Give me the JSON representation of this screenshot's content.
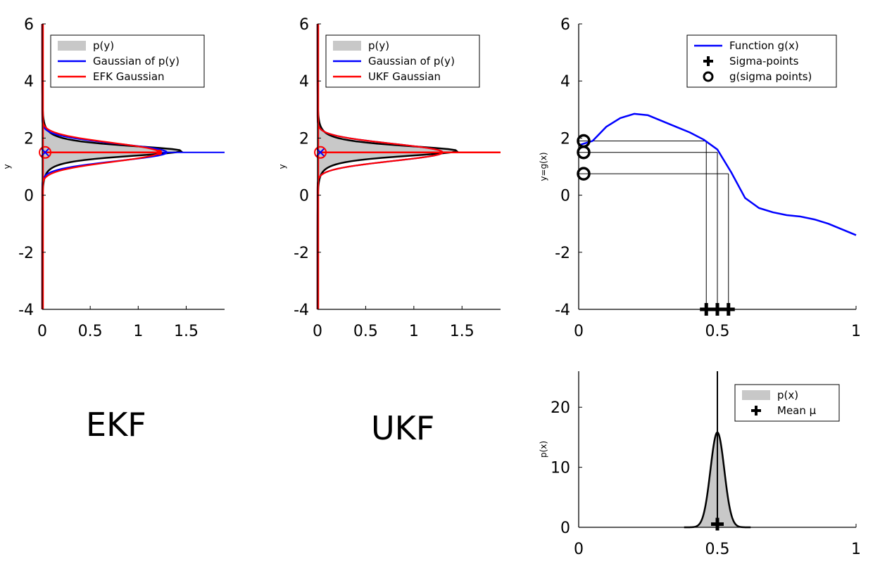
{
  "captions": {
    "left": "EKF",
    "middle": "UKF"
  },
  "colors": {
    "gray_fill": "#c8c8c8",
    "blue": "#0000ff",
    "red": "#ff0000",
    "black": "#000000"
  },
  "chart_data": [
    {
      "id": "ekf",
      "type": "area",
      "orientation": "horizontal-density",
      "xlim": [
        0,
        1.9
      ],
      "ylim": [
        -4,
        6
      ],
      "xticks": [
        "0",
        "0.5",
        "1",
        "1.5"
      ],
      "xtick_values": [
        0,
        0.5,
        1,
        1.5
      ],
      "yticks": [
        "-4",
        "-2",
        "0",
        "2",
        "4",
        "6"
      ],
      "ytick_values": [
        -4,
        -2,
        0,
        2,
        4,
        6
      ],
      "ylabel": "y",
      "legend_position": "top-right",
      "legend": [
        "p(y)",
        "Gaussian of p(y)",
        "EFK Gaussian"
      ],
      "series": [
        {
          "name": "p(y)",
          "kind": "density",
          "mean": 1.55,
          "sd": 0.27,
          "peak": 1.45
        },
        {
          "name": "Gaussian of p(y)",
          "kind": "gaussian",
          "mean": 1.5,
          "sd": 0.3,
          "peak": 1.3
        },
        {
          "name": "EFK Gaussian",
          "kind": "gaussian",
          "mean": 1.5,
          "sd": 0.33,
          "peak": 1.22
        }
      ],
      "markers": [
        {
          "shape": "x",
          "x": 0.03,
          "y": 1.5,
          "color": "blue"
        },
        {
          "shape": "circle",
          "x": 0.03,
          "y": 1.5,
          "color": "red"
        }
      ]
    },
    {
      "id": "ukf",
      "type": "area",
      "orientation": "horizontal-density",
      "xlim": [
        0,
        1.9
      ],
      "ylim": [
        -4,
        6
      ],
      "xticks": [
        "0",
        "0.5",
        "1",
        "1.5"
      ],
      "xtick_values": [
        0,
        0.5,
        1,
        1.5
      ],
      "yticks": [
        "-4",
        "-2",
        "0",
        "2",
        "4",
        "6"
      ],
      "ytick_values": [
        -4,
        -2,
        0,
        2,
        4,
        6
      ],
      "ylabel": "y",
      "legend_position": "top-right",
      "legend": [
        "p(y)",
        "Gaussian of p(y)",
        "UKF Gaussian"
      ],
      "series": [
        {
          "name": "p(y)",
          "kind": "density",
          "mean": 1.55,
          "sd": 0.27,
          "peak": 1.45
        },
        {
          "name": "Gaussian of p(y)",
          "kind": "gaussian",
          "mean": 1.5,
          "sd": 0.3,
          "peak": 1.3
        },
        {
          "name": "UKF Gaussian",
          "kind": "gaussian",
          "mean": 1.5,
          "sd": 0.3,
          "peak": 1.3
        }
      ],
      "markers": [
        {
          "shape": "x",
          "x": 0.03,
          "y": 1.5,
          "color": "blue"
        },
        {
          "shape": "circle",
          "x": 0.03,
          "y": 1.5,
          "color": "red"
        }
      ]
    },
    {
      "id": "transform",
      "type": "line",
      "xlim": [
        0,
        1
      ],
      "ylim": [
        -4,
        6
      ],
      "xticks": [
        "0",
        "0.5",
        "1"
      ],
      "xtick_values": [
        0,
        0.5,
        1
      ],
      "yticks": [
        "-4",
        "-2",
        "0",
        "2",
        "4",
        "6"
      ],
      "ytick_values": [
        -4,
        -2,
        0,
        2,
        4,
        6
      ],
      "ylabel": "y=g(x)",
      "legend_position": "top-right",
      "legend": [
        "Function g(x)",
        "Sigma-points",
        "g(sigma points)"
      ],
      "x": [
        0,
        0.05,
        0.1,
        0.15,
        0.2,
        0.25,
        0.3,
        0.35,
        0.4,
        0.45,
        0.5,
        0.55,
        0.6,
        0.65,
        0.7,
        0.75,
        0.8,
        0.85,
        0.9,
        0.95,
        1.0
      ],
      "y": [
        1.75,
        1.9,
        2.4,
        2.7,
        2.85,
        2.8,
        2.6,
        2.4,
        2.2,
        1.95,
        1.6,
        0.8,
        -0.1,
        -0.45,
        -0.6,
        -0.7,
        -0.75,
        -0.85,
        -1.0,
        -1.2,
        -1.4
      ],
      "sigma_points_x": [
        0.46,
        0.5,
        0.54
      ],
      "g_sigma_points_y": [
        1.9,
        1.5,
        0.75
      ]
    },
    {
      "id": "prior",
      "type": "area",
      "xlim": [
        0,
        1
      ],
      "ylim": [
        0,
        26
      ],
      "xticks": [
        "0",
        "0.5",
        "1"
      ],
      "xtick_values": [
        0,
        0.5,
        1
      ],
      "yticks": [
        "0",
        "10",
        "20"
      ],
      "ytick_values": [
        0,
        10,
        20
      ],
      "ylabel": "p(x)",
      "legend_position": "top-right",
      "legend": [
        "p(x)",
        "Mean μ"
      ],
      "mean": 0.5,
      "sd": 0.025,
      "peak": 15.8,
      "mean_marker": {
        "x": 0.5,
        "y": 0.3
      }
    }
  ]
}
